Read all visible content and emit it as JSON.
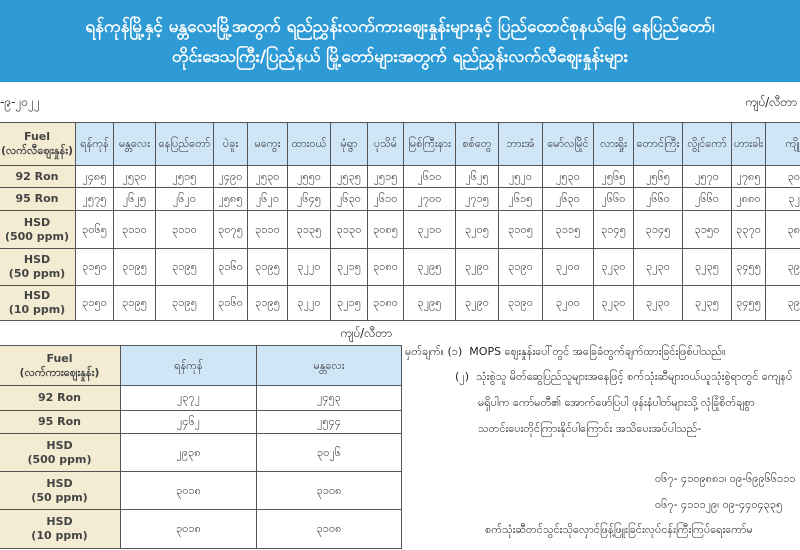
{
  "header": {
    "title_line1": "ရန်ကုန်မြို့နှင့် မန္တလေးမြို့အတွက် ရည်ညွှန်းလက်ကားဈေးနှုန်းများနှင့် ပြည်ထောင်စုနယ်မြေ နေပြည်တော်၊",
    "title_line2": "တိုင်းဒေသကြီး/ပြည်နယ် မြို့တော်များအတွက် ရည်ညွှန်းလက်လီဈေးနှုန်းများ",
    "date": "-၉-၂၀၂၂",
    "unit": "ကျပ်/လီတာ"
  },
  "retail": {
    "fuel_label": "Fuel",
    "fuel_sub": "(လက်လီဈေးနှုန်း)",
    "cities": [
      "ရန်ကုန်",
      "မန္တလေး",
      "နေပြည်တော်",
      "ပဲခူး",
      "မကွေး",
      "ထားဝယ်",
      "မုံရွာ",
      "ပုသိမ်",
      "မြစ်ကြီးနား",
      "စစ်တွေ",
      "ဘားအံ",
      "မော်လမြိုင်",
      "လားရှိုး",
      "တောင်ကြီး",
      "လွိုင်ကော်",
      "ဟားခါး",
      "ကျိုင်း"
    ],
    "rows": [
      {
        "fuel": "92 Ron",
        "sub": "",
        "values": [
          "၂၄၈၅",
          "၂၅၃၀",
          "၂၅၁၅",
          "၂၄၉၀",
          "၂၅၃၀",
          "၂၅၅၀",
          "၂၅၃၅",
          "၂၅၁၅",
          "၂၆၁၀",
          "၂၆၂၅",
          "၂၅၂၀",
          "၂၅၃၀",
          "၂၅၆၅",
          "၂၅၆၅",
          "၂၅၇၀",
          "၂၇၈၅",
          "၃၀၆"
        ]
      },
      {
        "fuel": "95 Ron",
        "sub": "",
        "values": [
          "၂၅၇၅",
          "၂၆၂၅",
          "၂၆၂၀",
          "၂၅၈၅",
          "၂၆၂၀",
          "၂၆၄၅",
          "၂၆၃၀",
          "၂၆၁၀",
          "၂၇၀၀",
          "၂၇၁၅",
          "၂၆၁၅",
          "၂၆၃၀",
          "၂၆၆၀",
          "၂၆၆၀",
          "၂၆၆၀",
          "၂၈၈၀",
          "၃၂၂"
        ]
      },
      {
        "fuel": "HSD",
        "sub": "(500 ppm)",
        "values": [
          "၃၀၆၅",
          "၃၁၁၀",
          "၃၁၁၀",
          "၃၀၇၅",
          "၃၁၁၀",
          "၃၁၃၅",
          "၃၁၃၀",
          "၃၀၈၅",
          "၃၂၁၀",
          "၃၂၀၅",
          "၃၁၀၅",
          "၃၁၁၅",
          "၃၁၄၅",
          "၃၁၄၅",
          "၃၁၅၀",
          "၃၃၇၀",
          "၃၈၉"
        ]
      },
      {
        "fuel": "HSD",
        "sub": "(50 ppm)",
        "values": [
          "၃၁၅၀",
          "၃၁၉၅",
          "၃၁၉၅",
          "၃၁၆၀",
          "၃၁၉၅",
          "၃၂၂၀",
          "၃၂၁၅",
          "၃၁၈၀",
          "၃၂၉၅",
          "၃၂၉၀",
          "၃၁၉၀",
          "၃၂၀၀",
          "၃၂၃၀",
          "၃၂၃၀",
          "၃၂၃၅",
          "၃၄၅၅",
          "၃၉၃"
        ]
      },
      {
        "fuel": "HSD",
        "sub": "(10 ppm)",
        "values": [
          "၃၁၅၀",
          "၃၁၉၅",
          "၃၁၉၅",
          "၃၁၆၀",
          "၃၁၉၅",
          "၃၂၂၀",
          "၃၂၁၅",
          "၃၁၈၀",
          "၃၂၉၅",
          "၃၂၉၀",
          "၃၁၉၀",
          "၃၂၀၀",
          "၃၂၃၀",
          "၃၂၃၀",
          "၃၂၃၅",
          "၃၄၅၅",
          "၃၉၃"
        ]
      }
    ]
  },
  "wholesale": {
    "unit": "ကျပ်/လီတာ",
    "fuel_label": "Fuel",
    "fuel_sub": "(လက်ကားဈေးနှုန်း)",
    "cities": [
      "ရန်ကုန်",
      "မန္တလေး"
    ],
    "rows": [
      {
        "fuel": "92 Ron",
        "sub": "",
        "values": [
          "၂၃၇၂",
          "၂၄၅၃"
        ]
      },
      {
        "fuel": "95 Ron",
        "sub": "",
        "values": [
          "၂၄၆၂",
          "၂၅၄၄"
        ]
      },
      {
        "fuel": "HSD",
        "sub": "(500 ppm)",
        "values": [
          "၂၉၃၈",
          "၃၀၂၆"
        ]
      },
      {
        "fuel": "HSD",
        "sub": "(50 ppm)",
        "values": [
          "၃၀၁၈",
          "၃၁၀၈"
        ]
      },
      {
        "fuel": "HSD",
        "sub": "(10 ppm)",
        "values": [
          "၃၀၁၈",
          "၃၁၀၈"
        ]
      }
    ]
  },
  "notes": {
    "label": "မှတ်ချက်။",
    "n1_num": "(၁)",
    "n1": "MOPS ဈေးနှုန်းပေါ်တွင် အခြေခံတွက်ချက်ထားခြင်းဖြစ်ပါသည်။",
    "n2_num": "(၂)",
    "n2_line1": "သုံးစွဲသူ မိတ်ဆွေပြည်သူများအနေဖြင့် စက်သုံးဆီများဝယ်ယူသုံးစွဲရာတွင် ကျေနပ်",
    "n2_line2": "မရှိပါက  ကော်မတီ၏ အောက်ဖော်ပြပါ ဖုန်းနံပါတ်များသို့ လုံခြုံစိတ်ချစွာ",
    "n2_line3": "သတင်းပေးတိုင်ကြားနိုင်ပါကြောင်း အသိပေးအပ်ပါသည်-",
    "phone1": "၀၆၇- ၄၁၀၉၈၈၁၊ ၀၉-၆၉၉၆၆၁၁၁",
    "phone2": "၀၆၇- ၄၁၁၁၂၉၊ ၀၉-၄၄၀၄၃၃၅",
    "committee": "စက်သုံးဆီတင်သွင်းသိုလှောင်ဖြန့်ဖြူးခြင်းလုပ်ငန်းကြီးကြပ်ရေးကော်မ"
  },
  "colors": {
    "banner": "#2e9bd6",
    "header_cell": "#cfe6f7",
    "label_cell": "#f3ecd3"
  }
}
